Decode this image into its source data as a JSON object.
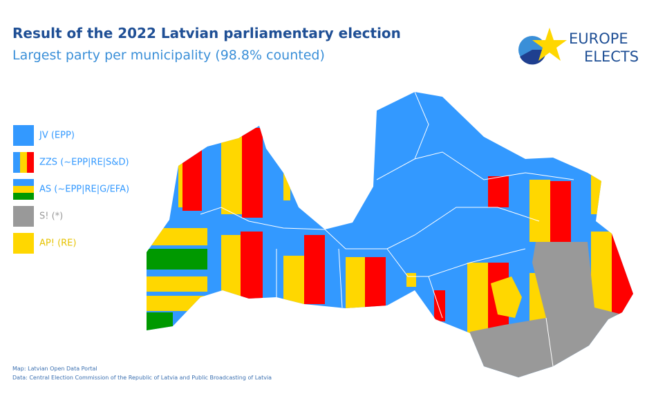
{
  "header": {
    "title": "Result of the 2022 Latvian parliamentary election",
    "subtitle": "Largest party per municipality (98.8% counted)"
  },
  "logo": {
    "line1": "EUROPE",
    "line2": "ELECTS"
  },
  "legend": [
    {
      "label": "JV (EPP)",
      "colors": [
        "#3399ff"
      ]
    },
    {
      "label": "ZZS (~EPP|RE|S&D)",
      "colors": [
        "#3399ff",
        "#ffd700",
        "#ff0000"
      ]
    },
    {
      "label": "AS (~EPP|RE|G/EFA)",
      "colors": [
        "#3399ff",
        "#ffd700",
        "#009900"
      ]
    },
    {
      "label": "S! (*)",
      "colors": [
        "#999999"
      ]
    },
    {
      "label": "AP! (RE)",
      "colors": [
        "#ffd700"
      ]
    }
  ],
  "source": {
    "line1": "Map: Latvian Open Data Portal",
    "line2": "Data: Central Election Commission of the Republic of Latvia and Public Broadcasting of Latvia"
  }
}
